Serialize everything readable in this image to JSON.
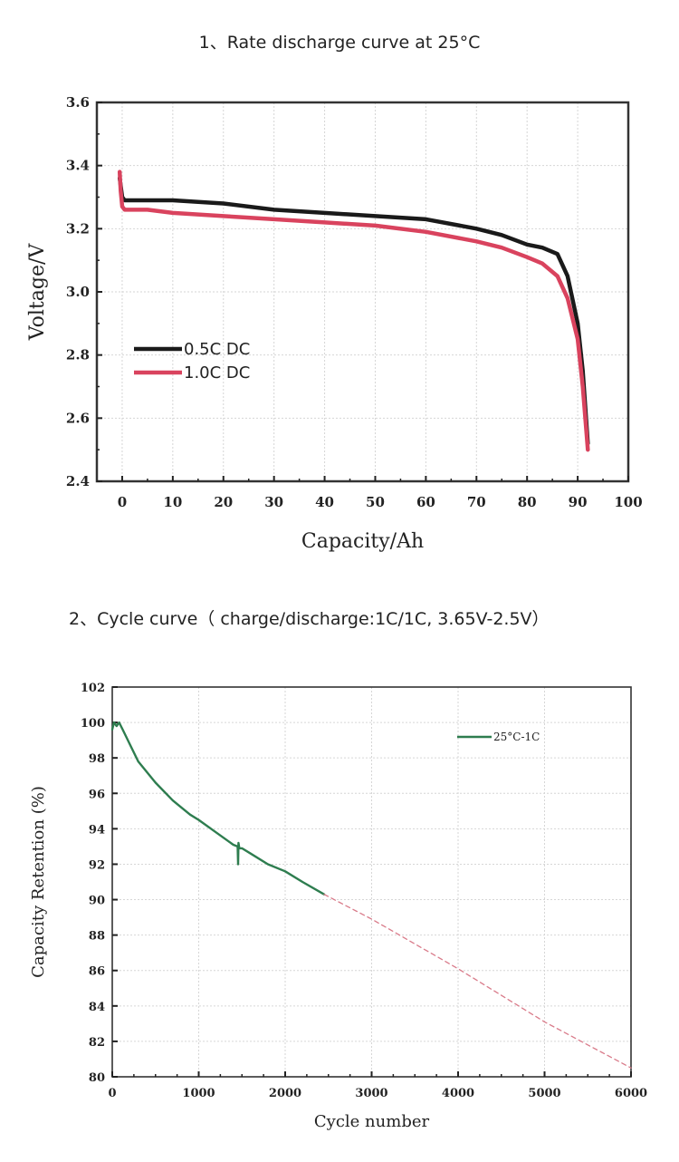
{
  "chart_data": [
    {
      "type": "line",
      "title": "1、Rate discharge curve at 25°C",
      "xlabel": "Capacity/Ah",
      "ylabel": "Voltage/V",
      "xlim": [
        -5,
        100
      ],
      "ylim": [
        2.4,
        3.6
      ],
      "xticks": [
        "0",
        "10",
        "20",
        "30",
        "40",
        "50",
        "60",
        "70",
        "80",
        "90",
        "100"
      ],
      "yticks": [
        "2.4",
        "2.6",
        "2.8",
        "3.0",
        "3.2",
        "3.4",
        "3.6"
      ],
      "grid": true,
      "legend_position": "center-left",
      "series": [
        {
          "name": "0.5C DC",
          "color": "#1a1a1a",
          "x": [
            -0.5,
            0,
            0.5,
            5,
            10,
            20,
            30,
            40,
            50,
            60,
            70,
            75,
            80,
            83,
            86,
            88,
            90,
            91,
            92
          ],
          "y": [
            3.36,
            3.3,
            3.29,
            3.29,
            3.29,
            3.28,
            3.26,
            3.25,
            3.24,
            3.23,
            3.2,
            3.18,
            3.15,
            3.14,
            3.12,
            3.05,
            2.9,
            2.75,
            2.52
          ]
        },
        {
          "name": "1.0C DC",
          "color": "#d9435e",
          "x": [
            -0.5,
            -0.3,
            0,
            0.5,
            5,
            10,
            20,
            30,
            40,
            50,
            60,
            70,
            75,
            80,
            83,
            86,
            88,
            90,
            91,
            92
          ],
          "y": [
            3.38,
            3.32,
            3.27,
            3.26,
            3.26,
            3.25,
            3.24,
            3.23,
            3.22,
            3.21,
            3.19,
            3.16,
            3.14,
            3.11,
            3.09,
            3.05,
            2.98,
            2.85,
            2.7,
            2.5
          ]
        }
      ]
    },
    {
      "type": "line",
      "title": "2、Cycle curve（ charge/discharge:1C/1C, 3.65V-2.5V）",
      "xlabel": "Cycle number",
      "ylabel": "Capacity Retention (%)",
      "xlim": [
        0,
        6000
      ],
      "ylim": [
        80,
        102
      ],
      "xticks": [
        "0",
        "1000",
        "2000",
        "3000",
        "4000",
        "5000",
        "6000"
      ],
      "yticks": [
        "80",
        "82",
        "84",
        "86",
        "88",
        "90",
        "92",
        "94",
        "96",
        "98",
        "100",
        "102"
      ],
      "grid": true,
      "legend_position": "top-right",
      "series": [
        {
          "name": "25°C-1C",
          "color": "#2e7d4f",
          "x": [
            0,
            20,
            50,
            80,
            120,
            200,
            300,
            500,
            700,
            900,
            1000,
            1200,
            1400,
            1450,
            1455,
            1460,
            1470,
            1500,
            1600,
            1800,
            2000,
            2200,
            2450
          ],
          "y": [
            99.6,
            100,
            99.8,
            100,
            99.6,
            98.8,
            97.8,
            96.6,
            95.6,
            94.8,
            94.5,
            93.8,
            93.1,
            93.0,
            92.0,
            93.2,
            92.9,
            92.9,
            92.6,
            92.0,
            91.6,
            91.0,
            90.3
          ]
        },
        {
          "name": "",
          "color": "#d97b8a",
          "dashed": true,
          "x": [
            2450,
            3000,
            4000,
            5000,
            6000
          ],
          "y": [
            90.3,
            88.9,
            86.1,
            83.1,
            80.5
          ]
        }
      ]
    }
  ]
}
